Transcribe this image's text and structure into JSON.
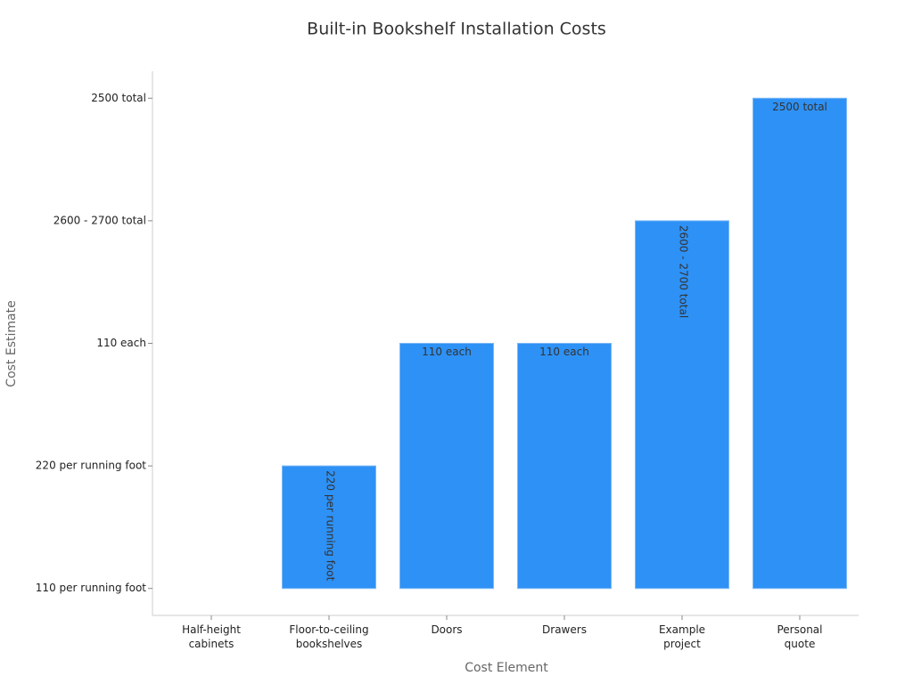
{
  "chart_data": {
    "type": "bar",
    "title": "Built-in Bookshelf Installation Costs",
    "x_label": "Cost Element",
    "y_label": "Cost Estimate",
    "categories": [
      "Half-height\ncabinets",
      "Floor-to-ceiling\nbookshelves",
      "Doors",
      "Drawers",
      "Example\nproject",
      "Personal\nquote"
    ],
    "values": [
      0,
      1,
      2,
      2,
      3,
      4
    ],
    "value_labels": [
      null,
      "220 per running foot",
      "110 each",
      "110 each",
      "2600 - 2700 total",
      "2500 total"
    ],
    "color": "#2e91f5",
    "ylim": [
      -0.22,
      4.22
    ],
    "yticks": [
      {
        "value": 0,
        "label": "110 per running foot"
      },
      {
        "value": 1,
        "label": "220 per running foot"
      },
      {
        "value": 2,
        "label": "110 each"
      },
      {
        "value": 3,
        "label": "2600 - 2700 total"
      },
      {
        "value": 4,
        "label": "2500 total"
      }
    ],
    "grid": false
  }
}
